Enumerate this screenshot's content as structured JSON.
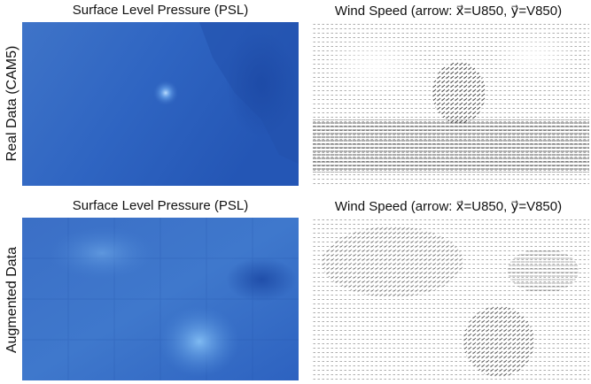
{
  "rows": [
    {
      "label": "Real Data (CAM5)",
      "panels": [
        {
          "title": "Surface Level Pressure (PSL)"
        },
        {
          "title": "Wind Speed (arrow: x⃗=U850, y⃗=V850)"
        }
      ]
    },
    {
      "label": "Augmented Data",
      "panels": [
        {
          "title": "Surface Level Pressure (PSL)"
        },
        {
          "title": "Wind Speed (arrow: x⃗=U850, y⃗=V850)"
        }
      ]
    }
  ]
}
